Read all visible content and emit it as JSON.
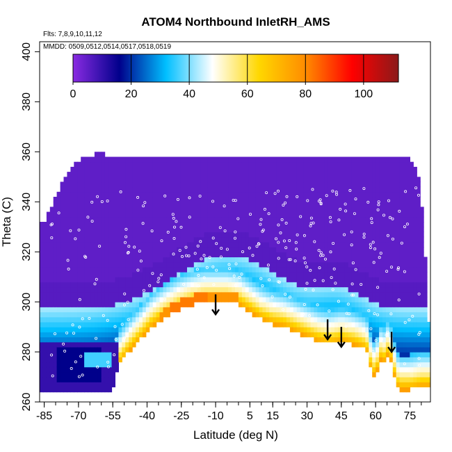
{
  "chart_data": {
    "type": "heatmap",
    "title": "ATOM4 Northbound InletRH_AMS",
    "annotations": {
      "flights": "Flts: 7,8,9,10,11,12",
      "dates": "MMDD: 0509,0512,0514,0517,0518,0519"
    },
    "xlabel": "Latitude (deg N)",
    "ylabel": "Theta (C)",
    "xlim": [
      -87,
      84
    ],
    "ylim": [
      260,
      404
    ],
    "xticks": [
      -85,
      -70,
      -55,
      -40,
      -25,
      -10,
      5,
      15,
      30,
      45,
      60,
      75
    ],
    "yticks": [
      260,
      280,
      300,
      320,
      340,
      360,
      380,
      400
    ],
    "grid": false,
    "colorbar": {
      "ticks": [
        0,
        20,
        40,
        60,
        80,
        100
      ],
      "range": [
        0,
        112
      ],
      "stops": [
        "#8a2be2",
        "#00008b",
        "#00bfff",
        "#ffffff",
        "#ffd700",
        "#ff8c00",
        "#ff0000",
        "#8b1a1a"
      ]
    },
    "arrows_at": [
      {
        "lat": -10,
        "theta": 295
      },
      {
        "lat": 39,
        "theta": 285
      },
      {
        "lat": 45,
        "theta": 282
      },
      {
        "lat": 67,
        "theta": 280
      }
    ]
  }
}
